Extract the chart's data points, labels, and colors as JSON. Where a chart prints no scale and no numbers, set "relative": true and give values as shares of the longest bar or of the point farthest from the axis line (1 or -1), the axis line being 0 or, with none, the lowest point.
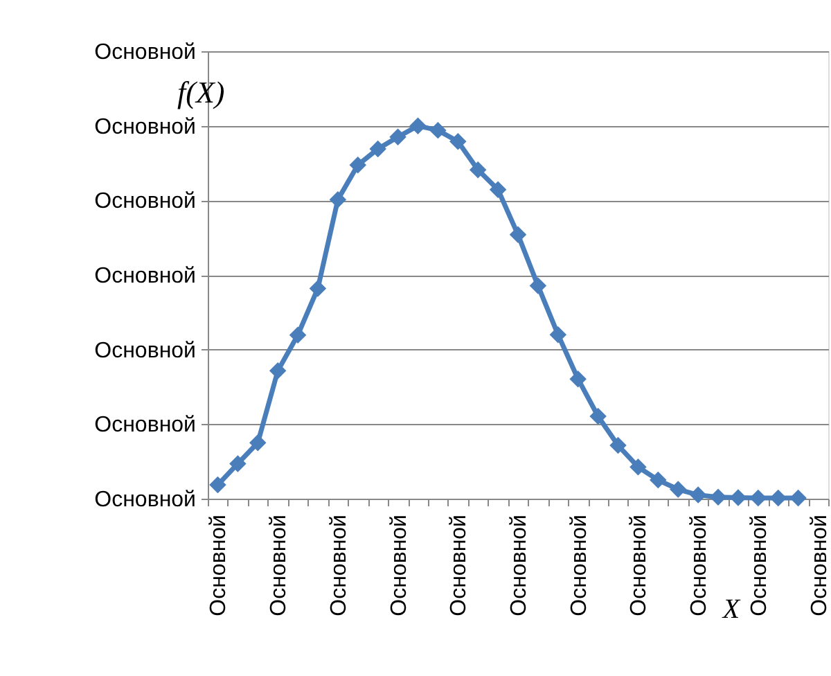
{
  "chart_data": {
    "type": "line",
    "relative": true,
    "xlabel": "X",
    "ylabel": "f(X)",
    "categories": [
      "Основной",
      null,
      null,
      "Основной",
      null,
      null,
      "Основной",
      null,
      null,
      "Основной",
      null,
      null,
      "Основной",
      null,
      null,
      "Основной",
      null,
      null,
      "Основной",
      null,
      null,
      "Основной",
      null,
      null,
      "Основной",
      null,
      null,
      "Основной",
      null,
      null,
      "Основной"
    ],
    "series": [
      {
        "color": "#4a7ebb",
        "values": [
          0.037,
          0.094,
          0.15,
          0.343,
          0.439,
          0.564,
          0.802,
          0.895,
          0.938,
          0.97,
          1,
          0.988,
          0.958,
          0.882,
          0.829,
          0.708,
          0.571,
          0.44,
          0.321,
          0.221,
          0.143,
          0.085,
          0.05,
          0.025,
          0.01,
          0.004,
          0.003,
          0.002,
          0.002,
          0.002,
          null
        ]
      }
    ],
    "annotations": [
      "Основной",
      "Основной",
      "Основной",
      "Основной",
      "Основной",
      "Основной",
      "Основной"
    ],
    "grid": "y",
    "marker": "diamond",
    "line_style": "solid"
  }
}
